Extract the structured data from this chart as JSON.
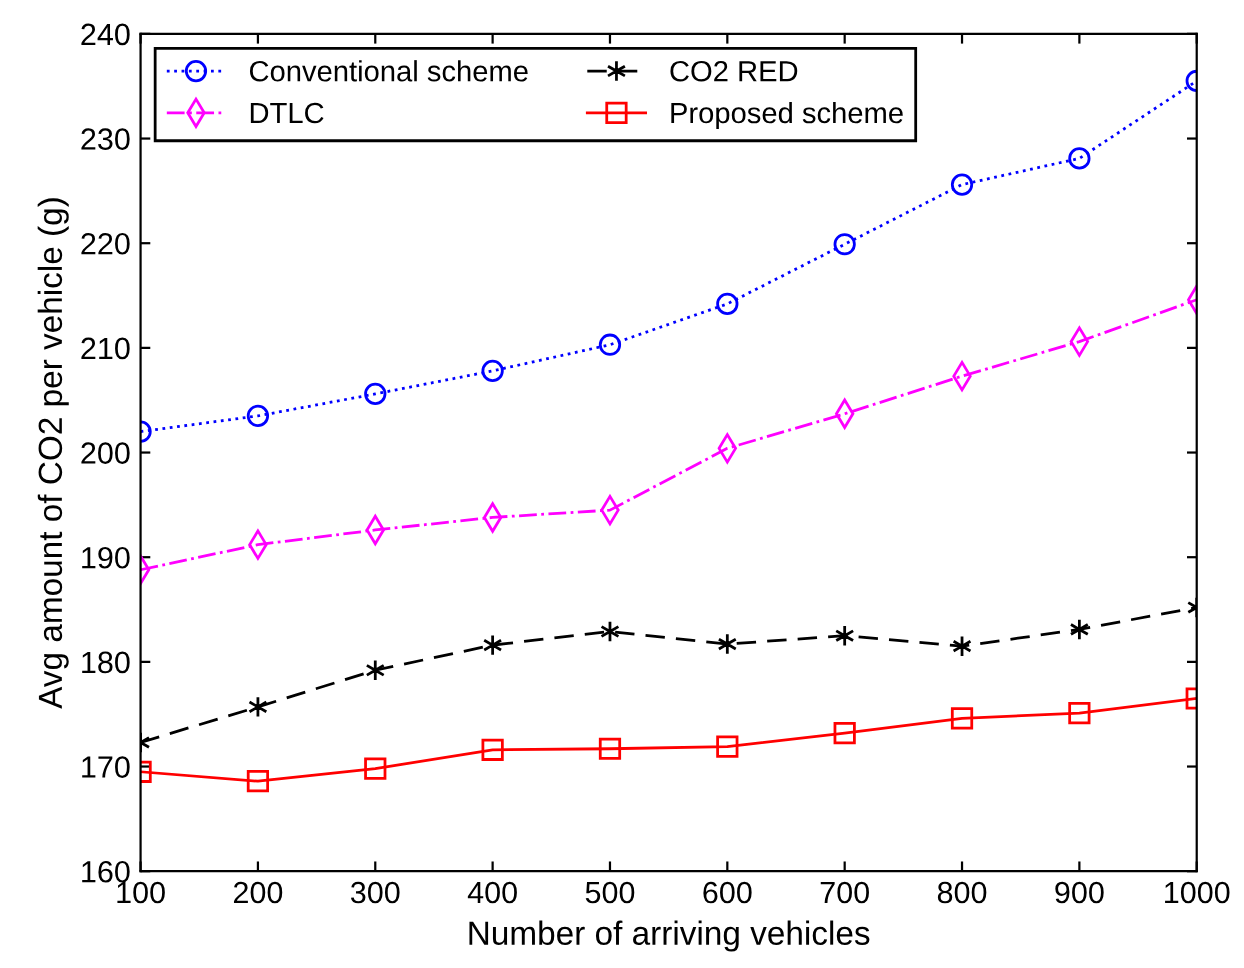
{
  "chart_data": {
    "type": "line",
    "xlabel": "Number of arriving vehicles",
    "ylabel": "Avg amount of CO2 per vehicle (g)",
    "x": [
      100,
      200,
      300,
      400,
      500,
      600,
      700,
      800,
      900,
      1000
    ],
    "xlim": [
      100,
      1000
    ],
    "xticks": [
      100,
      200,
      300,
      400,
      500,
      600,
      700,
      800,
      900,
      1000
    ],
    "ylim": [
      160,
      240
    ],
    "yticks": [
      160,
      170,
      180,
      190,
      200,
      210,
      220,
      230,
      240
    ],
    "grid": false,
    "legend": "top left",
    "series": [
      {
        "name": "Conventional scheme",
        "color": "#0000ff",
        "marker": "circle",
        "line_style": "dotted",
        "values": [
          202,
          203.5,
          205.6,
          207.8,
          210.3,
          214.2,
          219.9,
          225.6,
          228.1,
          235.5
        ]
      },
      {
        "name": "DTLC",
        "color": "#ff00ff",
        "marker": "diamond",
        "line_style": "dashdot",
        "values": [
          188.8,
          191.2,
          192.6,
          193.8,
          194.5,
          200.4,
          203.7,
          207.3,
          210.6,
          214.6
        ]
      },
      {
        "name": "CO2 RED",
        "color": "#000000",
        "marker": "cross",
        "line_style": "dashed",
        "values": [
          172.3,
          175.7,
          179.2,
          181.6,
          182.9,
          181.7,
          182.5,
          181.5,
          183.1,
          185.2
        ]
      },
      {
        "name": "Proposed scheme",
        "color": "#ff0000",
        "marker": "square",
        "line_style": "solid",
        "values": [
          169.5,
          168.6,
          169.8,
          171.6,
          171.7,
          171.9,
          173.2,
          174.6,
          175.1,
          176.5
        ]
      }
    ]
  }
}
